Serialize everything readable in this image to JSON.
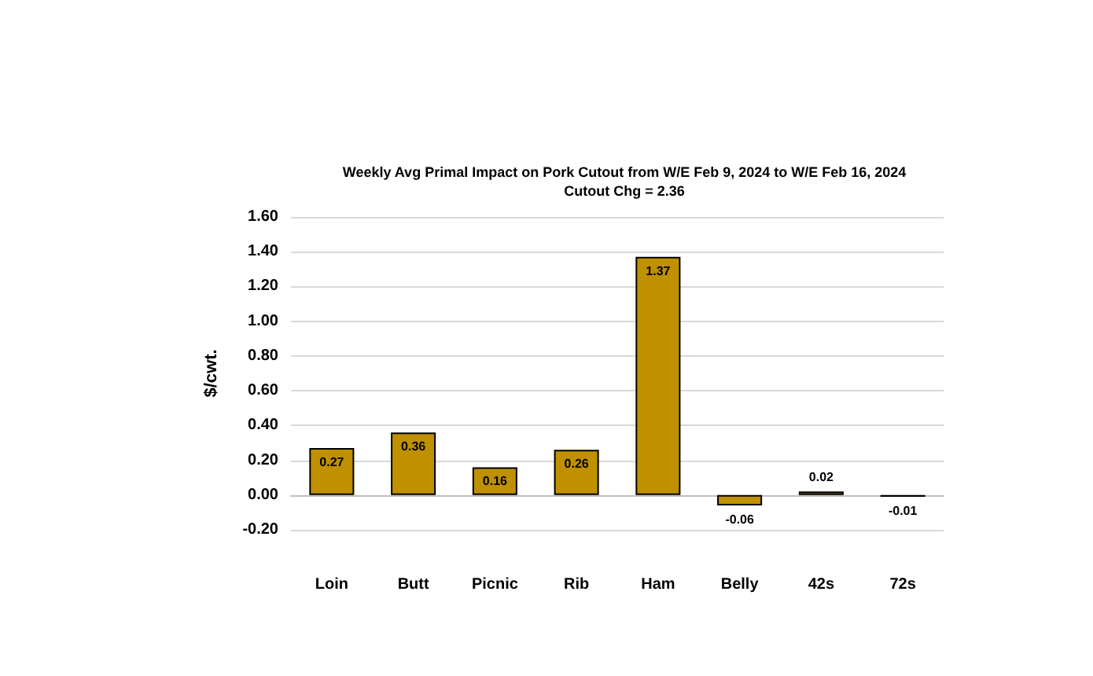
{
  "chart_data": {
    "type": "bar",
    "title": "Weekly Avg Primal Impact on Pork Cutout from W/E Feb 9, 2024 to W/E Feb 16, 2024",
    "subtitle": "Cutout Chg = 2.36",
    "ylabel": "$/cwt.",
    "categories": [
      "Loin",
      "Butt",
      "Picnic",
      "Rib",
      "Ham",
      "Belly",
      "42s",
      "72s"
    ],
    "values": [
      0.27,
      0.36,
      0.16,
      0.26,
      1.37,
      -0.06,
      0.02,
      -0.01
    ],
    "color": "#bf9000",
    "ylim": [
      -0.2,
      1.6
    ],
    "yticks": [
      {
        "value": -0.2,
        "label": "-0.20"
      },
      {
        "value": 0,
        "label": "0.00"
      },
      {
        "value": 0.2,
        "label": "0.20"
      },
      {
        "value": 0.4,
        "label": "0.40"
      },
      {
        "value": 0.6,
        "label": "0.60"
      },
      {
        "value": 0.8,
        "label": "0.80"
      },
      {
        "value": 1.0,
        "label": "1.00"
      },
      {
        "value": 1.2,
        "label": "1.20"
      },
      {
        "value": 1.4,
        "label": "1.40"
      },
      {
        "value": 1.6,
        "label": "1.60"
      }
    ],
    "grid": "y",
    "data_labels": true
  }
}
